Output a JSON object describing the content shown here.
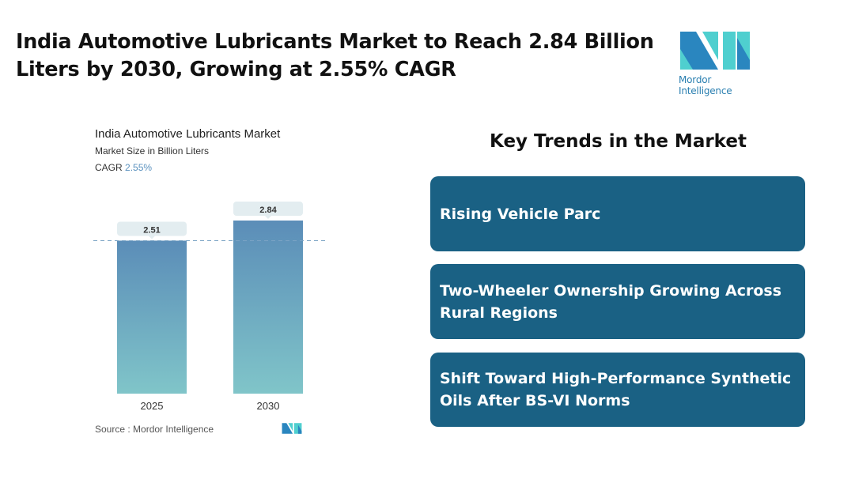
{
  "header": {
    "title": "India Automotive Lubricants Market to Reach 2.84 Billion Liters by 2030, Growing at 2.55% CAGR",
    "logo_text": "Mordor Intelligence"
  },
  "colors": {
    "bar_top": "#5b8db8",
    "bar_bottom": "#80c5c9",
    "card": "#1a6184",
    "logo_dark": "#2a86bf",
    "logo_light": "#4fcfcf"
  },
  "chart_data": {
    "type": "bar",
    "title": "India Automotive Lubricants Market",
    "subtitle": "Market Size in Billion Liters",
    "cagr_label": "CAGR",
    "cagr_value": "2.55%",
    "categories": [
      "2025",
      "2030"
    ],
    "values": [
      2.51,
      2.84
    ],
    "data_labels": [
      "2.51",
      "2.84"
    ],
    "ylim": [
      0,
      2.84
    ],
    "grid": false,
    "reference_line_at": 2.51
  },
  "source": {
    "text": "Source :  Mordor Intelligence"
  },
  "trends": {
    "title": "Key Trends in the Market",
    "items": [
      "Rising Vehicle Parc",
      "Two-Wheeler Ownership Growing Across Rural Regions",
      "Shift Toward High-Performance Synthetic Oils After BS-VI Norms"
    ]
  }
}
